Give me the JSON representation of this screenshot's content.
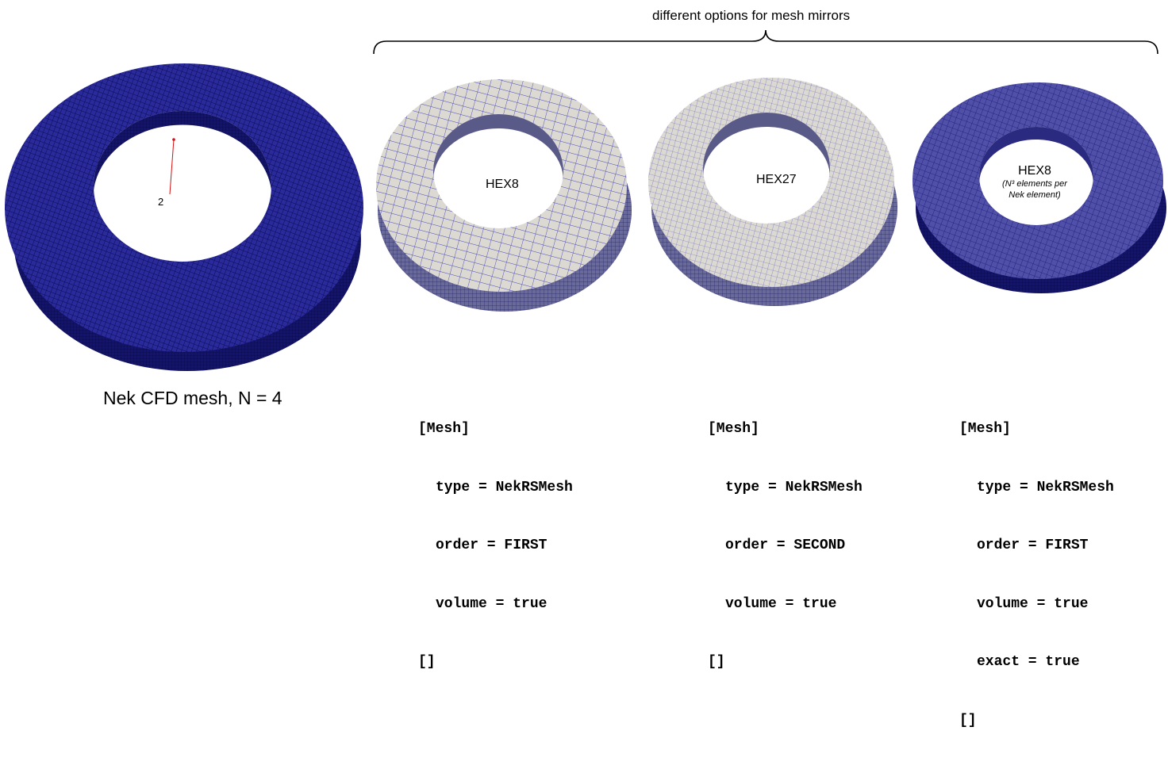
{
  "header": {
    "title": "different options for mesh mirrors"
  },
  "main_mesh": {
    "caption": "Nek CFD mesh, N = 4",
    "annotation": "2"
  },
  "mirrors": [
    {
      "label": "HEX8",
      "note": "",
      "code": [
        "[Mesh]",
        "type = NekRSMesh",
        "order = FIRST",
        "volume = true",
        "[]"
      ]
    },
    {
      "label": "HEX27",
      "note": "",
      "code": [
        "[Mesh]",
        "type = NekRSMesh",
        "order = SECOND",
        "volume = true",
        "[]"
      ]
    },
    {
      "label": "HEX8",
      "note_line1": "(N³ elements per",
      "note_line2": "Nek element)",
      "code": [
        "[Mesh]",
        "type = NekRSMesh",
        "order = FIRST",
        "volume = true",
        "exact = true",
        "[]"
      ]
    }
  ],
  "colors": {
    "mesh_dark": "#1a1a80",
    "mesh_light_face": "#d9d6d0",
    "mesh_line": "#3a3ab8",
    "annotation": "#d01010"
  }
}
